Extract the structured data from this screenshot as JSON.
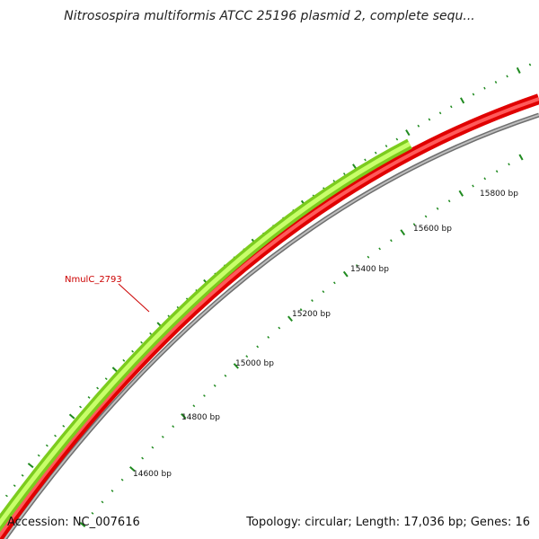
{
  "map": {
    "title": "Nitrosospira multiformis ATCC 25196 plasmid 2, complete sequ...",
    "accession": "Accession: NC_007616",
    "info": "Topology: circular; Length: 17,036 bp; Genes: 16"
  },
  "ticks": [
    {
      "label": "14600 bp"
    },
    {
      "label": "14800 bp"
    },
    {
      "label": "15000 bp"
    },
    {
      "label": "15200 bp"
    },
    {
      "label": "15400 bp"
    },
    {
      "label": "15600 bp"
    },
    {
      "label": "15800 bp"
    }
  ],
  "genes": [
    {
      "name": "NmulC_2793"
    }
  ],
  "colors": {
    "backbone": "#888888",
    "reverse_strand": "#ff0000",
    "gene": "#aaf03a",
    "ticks": "#1f8a1f",
    "gene_label": "#cc0000"
  }
}
